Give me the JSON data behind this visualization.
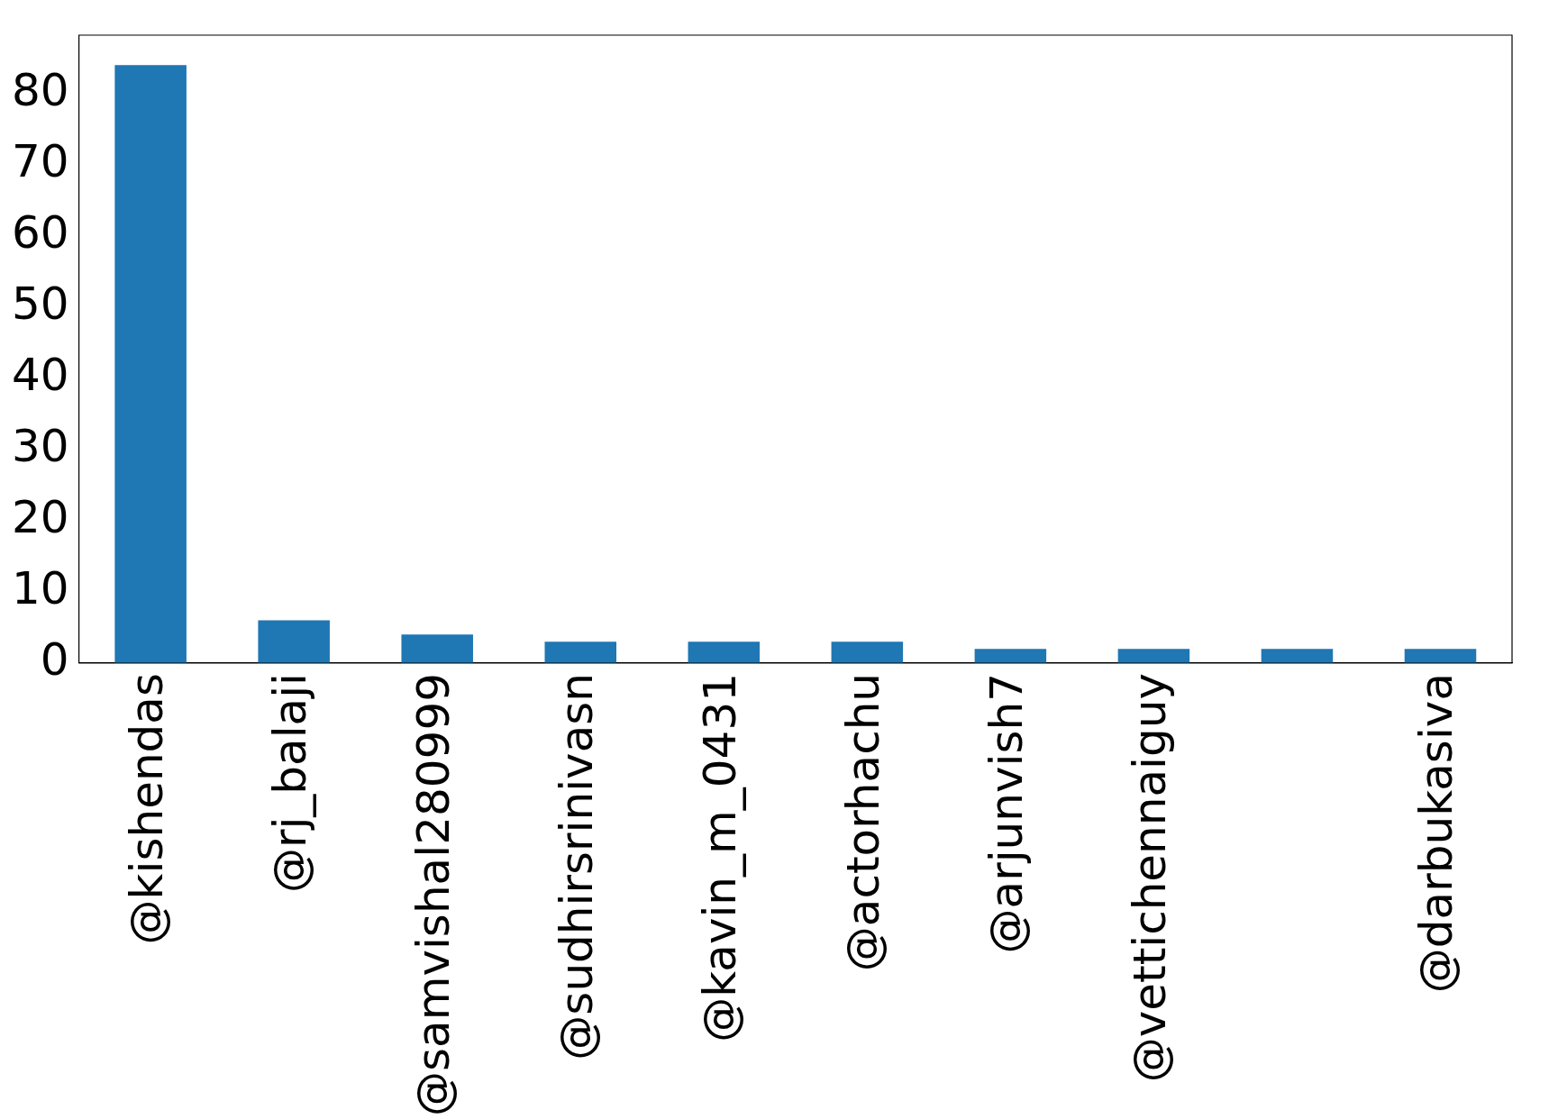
{
  "chart_data": {
    "type": "bar",
    "categories": [
      "@kishendas",
      "@rj_balaji",
      "@samvishal280999",
      "@sudhirsrinivasn",
      "@kavin_m_0431",
      "@actorhachu",
      "@arjunvish7",
      "@vettichennaiguy",
      null,
      "@darbukasiva"
    ],
    "values": [
      84,
      6,
      4,
      3,
      3,
      3,
      2,
      2,
      2,
      2
    ],
    "color": "#1f77b4",
    "ylim": [
      0,
      88.2
    ],
    "yticks": [
      0,
      10,
      20,
      30,
      40,
      50,
      60,
      70,
      80
    ],
    "grid": false,
    "legend": false
  }
}
